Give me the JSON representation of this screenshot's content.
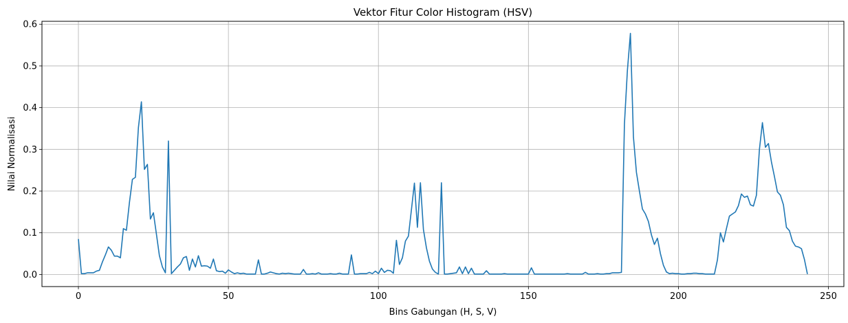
{
  "chart_data": {
    "type": "line",
    "title": "Vektor Fitur Color Histogram (HSV)",
    "xlabel": "Bins Gabungan (H, S, V)",
    "ylabel": "Nilai Normalisasi",
    "xlim": [
      -12.15,
      255.15
    ],
    "ylim": [
      -0.029,
      0.607
    ],
    "xticks": [
      0,
      50,
      100,
      150,
      200,
      250
    ],
    "xtick_labels": [
      "0",
      "50",
      "100",
      "150",
      "200",
      "250"
    ],
    "yticks": [
      0.0,
      0.1,
      0.2,
      0.3,
      0.4,
      0.5,
      0.6
    ],
    "ytick_labels": [
      "0.0",
      "0.1",
      "0.2",
      "0.3",
      "0.4",
      "0.5",
      "0.6"
    ],
    "grid": true,
    "line_color": "#1f77b4",
    "series": [
      {
        "x_start": 0,
        "values": [
          0.085,
          0.002,
          0.002,
          0.004,
          0.004,
          0.004,
          0.008,
          0.01,
          0.03,
          0.047,
          0.066,
          0.058,
          0.044,
          0.044,
          0.04,
          0.11,
          0.106,
          0.172,
          0.228,
          0.233,
          0.352,
          0.414,
          0.252,
          0.264,
          0.133,
          0.148,
          0.097,
          0.045,
          0.018,
          0.004,
          0.32,
          0.002,
          0.01,
          0.018,
          0.025,
          0.04,
          0.043,
          0.01,
          0.037,
          0.018,
          0.045,
          0.02,
          0.021,
          0.02,
          0.015,
          0.037,
          0.009,
          0.007,
          0.008,
          0.003,
          0.011,
          0.006,
          0.002,
          0.004,
          0.002,
          0.003,
          0.001,
          0.001,
          0.001,
          0.001,
          0.035,
          0.001,
          0.001,
          0.003,
          0.006,
          0.004,
          0.002,
          0.001,
          0.003,
          0.002,
          0.003,
          0.002,
          0.001,
          0.001,
          0.001,
          0.012,
          0.001,
          0.001,
          0.002,
          0.001,
          0.004,
          0.001,
          0.001,
          0.001,
          0.002,
          0.001,
          0.001,
          0.003,
          0.001,
          0.001,
          0.001,
          0.047,
          0.001,
          0.001,
          0.002,
          0.002,
          0.002,
          0.005,
          0.002,
          0.008,
          0.002,
          0.015,
          0.005,
          0.01,
          0.009,
          0.003,
          0.082,
          0.024,
          0.04,
          0.08,
          0.092,
          0.155,
          0.219,
          0.113,
          0.22,
          0.108,
          0.064,
          0.032,
          0.013,
          0.005,
          0.001,
          0.22,
          0.001,
          0.001,
          0.002,
          0.003,
          0.004,
          0.018,
          0.002,
          0.018,
          0.002,
          0.015,
          0.001,
          0.001,
          0.001,
          0.001,
          0.009,
          0.001,
          0.001,
          0.001,
          0.001,
          0.001,
          0.002,
          0.001,
          0.001,
          0.001,
          0.001,
          0.001,
          0.001,
          0.001,
          0.001,
          0.016,
          0.001,
          0.001,
          0.001,
          0.001,
          0.001,
          0.001,
          0.001,
          0.001,
          0.001,
          0.001,
          0.001,
          0.002,
          0.001,
          0.001,
          0.001,
          0.001,
          0.001,
          0.005,
          0.001,
          0.001,
          0.001,
          0.002,
          0.001,
          0.001,
          0.002,
          0.002,
          0.004,
          0.004,
          0.004,
          0.005,
          0.36,
          0.49,
          0.578,
          0.33,
          0.245,
          0.2,
          0.157,
          0.145,
          0.127,
          0.095,
          0.072,
          0.087,
          0.05,
          0.022,
          0.006,
          0.002,
          0.003,
          0.002,
          0.002,
          0.001,
          0.001,
          0.002,
          0.002,
          0.003,
          0.003,
          0.002,
          0.002,
          0.001,
          0.001,
          0.001,
          0.001,
          0.035,
          0.1,
          0.078,
          0.11,
          0.14,
          0.145,
          0.15,
          0.165,
          0.193,
          0.185,
          0.188,
          0.167,
          0.164,
          0.19,
          0.3,
          0.364,
          0.305,
          0.314,
          0.27,
          0.235,
          0.198,
          0.19,
          0.167,
          0.113,
          0.105,
          0.08,
          0.068,
          0.066,
          0.062,
          0.036,
          0.001
        ]
      }
    ]
  }
}
